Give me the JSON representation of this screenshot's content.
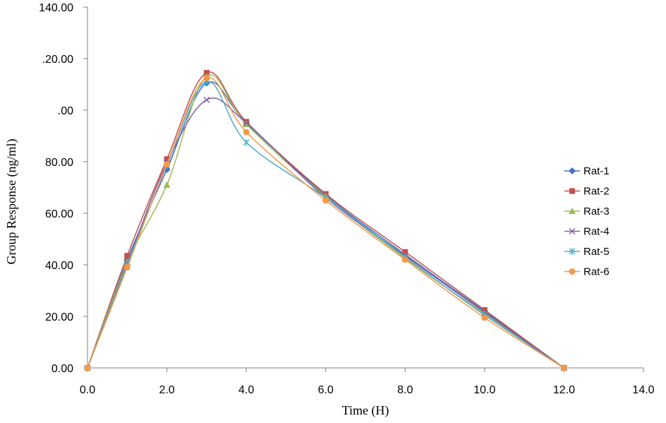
{
  "chart_data": {
    "type": "line",
    "title": "",
    "xlabel": "Time (H)",
    "ylabel": "Group Response (ng/ml)",
    "xlim": [
      0,
      14
    ],
    "ylim": [
      0,
      140
    ],
    "x_ticks": [
      "0.0",
      "2.0",
      "4.0",
      "6.0",
      "8.0",
      "10.0",
      "12.0",
      "14.0"
    ],
    "y_ticks": [
      "0.00",
      "20.00",
      "40.00",
      "60.00",
      "80.00",
      ".00",
      ".20.00",
      "140.00"
    ],
    "grid": false,
    "smoothed": true,
    "legend_position": "right",
    "series": [
      {
        "name": "Rat-1",
        "color": "#4472C4",
        "marker": "diamond",
        "x": [
          0,
          1,
          2,
          3,
          4,
          6,
          8,
          10,
          12
        ],
        "y": [
          0,
          42,
          77,
          110.5,
          95,
          67,
          44,
          22,
          0
        ]
      },
      {
        "name": "Rat-2",
        "color": "#C0504D",
        "marker": "square",
        "x": [
          0,
          1,
          2,
          3,
          4,
          6,
          8,
          10,
          12
        ],
        "y": [
          0,
          43.5,
          81,
          114.5,
          95.5,
          67.5,
          45,
          22.5,
          0
        ]
      },
      {
        "name": "Rat-3",
        "color": "#9BBB59",
        "marker": "triangle",
        "x": [
          0,
          1,
          2,
          3,
          4,
          6,
          8,
          10,
          12
        ],
        "y": [
          0,
          41,
          71,
          113,
          94.5,
          66.5,
          42.5,
          21,
          0
        ]
      },
      {
        "name": "Rat-4",
        "color": "#8064A2",
        "marker": "x",
        "x": [
          0,
          1,
          2,
          3,
          4,
          6,
          8,
          10,
          12
        ],
        "y": [
          0,
          40.5,
          79.5,
          104,
          95,
          66,
          43.5,
          21.5,
          0
        ]
      },
      {
        "name": "Rat-5",
        "color": "#4BACC6",
        "marker": "star",
        "x": [
          0,
          1,
          2,
          3,
          4,
          6,
          8,
          10,
          12
        ],
        "y": [
          0,
          40,
          78.5,
          111,
          87.5,
          66,
          43,
          20.5,
          0
        ]
      },
      {
        "name": "Rat-6",
        "color": "#F79646",
        "marker": "circle",
        "x": [
          0,
          1,
          2,
          3,
          4,
          6,
          8,
          10,
          12
        ],
        "y": [
          0,
          39,
          79,
          112.5,
          91.5,
          65,
          42,
          19.5,
          0
        ]
      }
    ]
  }
}
